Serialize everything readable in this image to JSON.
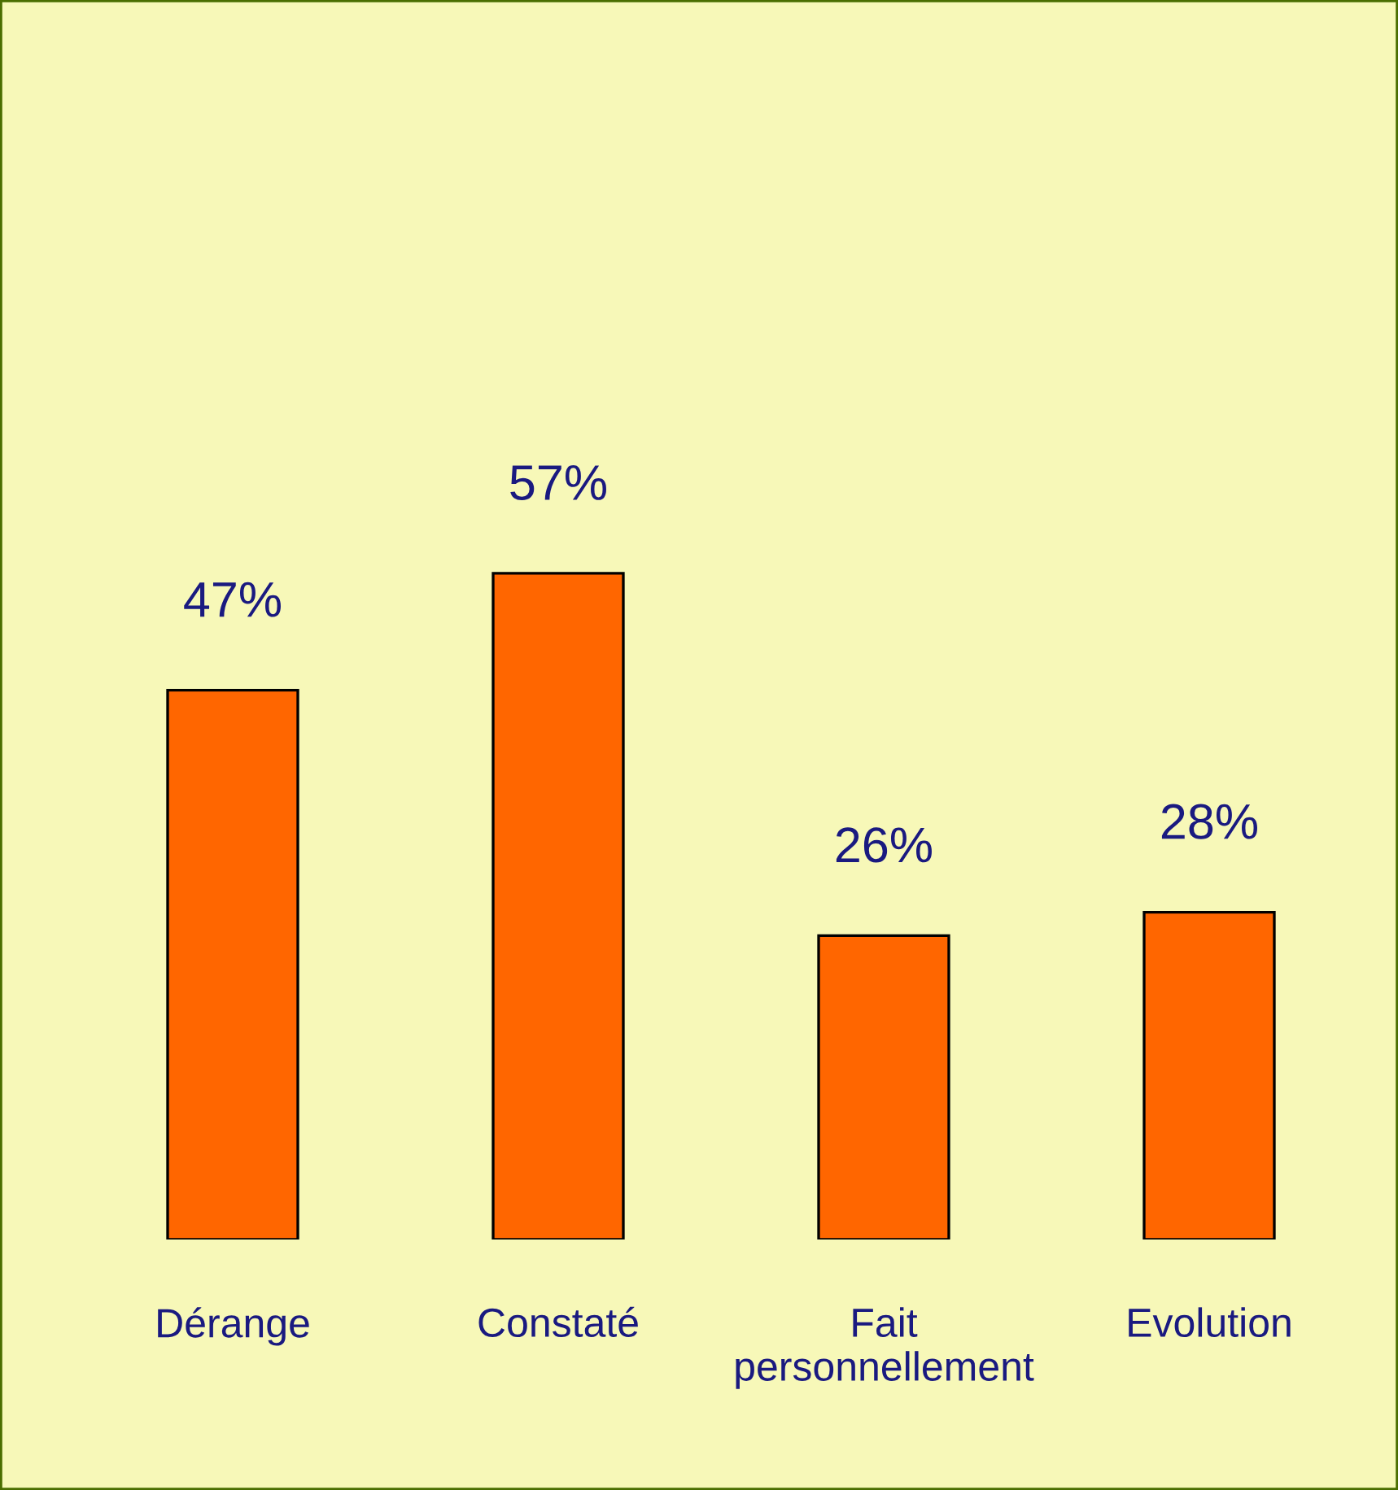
{
  "chart_data": {
    "type": "bar",
    "categories": [
      "Dérange",
      "Constaté",
      "Fait\npersonnellement",
      "Evolution"
    ],
    "values": [
      47,
      57,
      26,
      28
    ],
    "value_labels": [
      "47%",
      "57%",
      "26%",
      "28%"
    ],
    "color": "#ff6600"
  }
}
